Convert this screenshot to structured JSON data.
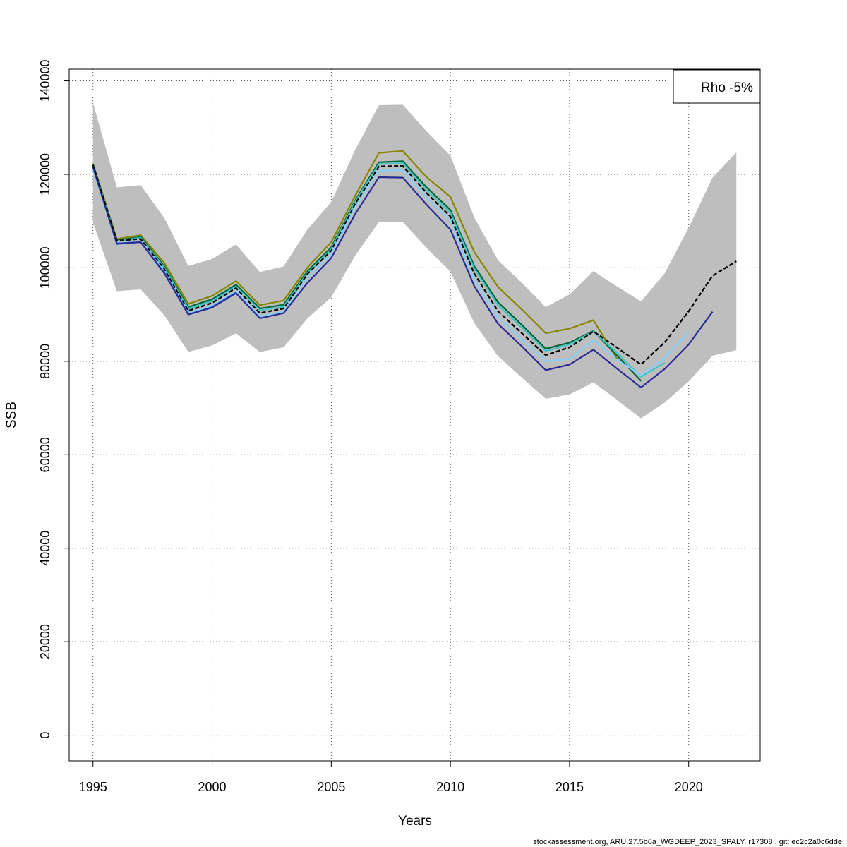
{
  "footer": "stockassessment.org, ARU.27.5b6a_WGDEEP_2023_SPALY, r17308 , git: ec2c2a0c6dde",
  "chart_data": {
    "type": "line",
    "title": "",
    "xlabel": "Years",
    "ylabel": "SSB",
    "xlim": [
      1994,
      2023
    ],
    "ylim": [
      -5500,
      142500
    ],
    "grid": true,
    "x_ticks": [
      1995,
      2000,
      2005,
      2010,
      2015,
      2020
    ],
    "y_ticks": [
      0,
      20000,
      40000,
      60000,
      80000,
      100000,
      120000,
      140000
    ],
    "legend": {
      "position": "top-right",
      "entries": [
        "Rho -5%"
      ]
    },
    "confidence_band": {
      "color": "#bebebe",
      "x": [
        1995,
        1996,
        1997,
        1998,
        1999,
        2000,
        2001,
        2002,
        2003,
        2004,
        2005,
        2006,
        2007,
        2008,
        2009,
        2010,
        2011,
        2012,
        2013,
        2014,
        2015,
        2016,
        2017,
        2018,
        2019,
        2020,
        2021,
        2022
      ],
      "upper": [
        135300,
        117200,
        117700,
        110600,
        100400,
        101900,
        105000,
        99100,
        100300,
        108200,
        114100,
        125200,
        134800,
        134900,
        129200,
        124000,
        110800,
        101600,
        96800,
        91600,
        94300,
        99300,
        96000,
        92800,
        98900,
        108600,
        119300,
        124700
      ],
      "lower": [
        109700,
        95000,
        95400,
        89800,
        82000,
        83400,
        86000,
        82000,
        83000,
        89200,
        93700,
        102600,
        109800,
        109800,
        104300,
        99200,
        88200,
        81100,
        76500,
        72000,
        72900,
        75500,
        71700,
        67800,
        71200,
        75700,
        81200,
        82400
      ]
    },
    "series": [
      {
        "color": "#000000",
        "dashed": true,
        "x": [
          1995,
          1996,
          1997,
          1998,
          1999,
          2000,
          2001,
          2002,
          2003,
          2004,
          2005,
          2006,
          2007,
          2008,
          2009,
          2010,
          2011,
          2012,
          2013,
          2014,
          2015,
          2016,
          2017,
          2018,
          2019,
          2020,
          2021,
          2022
        ],
        "values": [
          122000,
          105800,
          106200,
          99700,
          90800,
          92500,
          95700,
          90300,
          91300,
          98700,
          103700,
          113700,
          121700,
          121800,
          116000,
          111000,
          98800,
          90700,
          86000,
          81300,
          83000,
          86400,
          82900,
          79300,
          84100,
          90700,
          98300,
          101400
        ]
      },
      {
        "color": "#878700",
        "x": [
          1995,
          1996,
          1997,
          1998,
          1999,
          2000,
          2001,
          2002,
          2003,
          2004,
          2005,
          2006,
          2007,
          2008,
          2009,
          2010,
          2011,
          2012,
          2013,
          2014,
          2015,
          2016,
          2017
        ],
        "values": [
          122300,
          106200,
          107000,
          101000,
          92300,
          94000,
          97200,
          92000,
          93000,
          100100,
          105500,
          115400,
          124600,
          125000,
          119400,
          115200,
          103400,
          95900,
          91100,
          86000,
          87000,
          88800,
          80500
        ]
      },
      {
        "color": "#006837",
        "x": [
          1995,
          1996,
          1997,
          1998,
          1999,
          2000,
          2001,
          2002,
          2003,
          2004,
          2005,
          2006,
          2007,
          2008,
          2009,
          2010,
          2011,
          2012,
          2013,
          2014,
          2015,
          2016,
          2017,
          2018
        ],
        "values": [
          122100,
          105900,
          106600,
          100300,
          91600,
          93300,
          96400,
          91300,
          92100,
          99300,
          104400,
          114400,
          122600,
          122800,
          117200,
          112400,
          100400,
          92600,
          87800,
          82700,
          84000,
          86500,
          81200,
          75800
        ]
      },
      {
        "color": "#43c5c5",
        "x": [
          1995,
          1996,
          1997,
          1998,
          1999,
          2000,
          2001,
          2002,
          2003,
          2004,
          2005,
          2006,
          2007,
          2008,
          2009,
          2010,
          2011,
          2012,
          2013,
          2014,
          2015,
          2016,
          2017,
          2018,
          2019
        ],
        "values": [
          121900,
          105700,
          106400,
          100000,
          91200,
          92900,
          96000,
          90900,
          91700,
          98900,
          104000,
          114100,
          122200,
          122400,
          116600,
          111800,
          99800,
          92000,
          87200,
          82200,
          83600,
          86400,
          81800,
          76700,
          79700
        ]
      },
      {
        "color": "#87cefa",
        "x": [
          1995,
          1996,
          1997,
          1998,
          1999,
          2000,
          2001,
          2002,
          2003,
          2004,
          2005,
          2006,
          2007,
          2008,
          2009,
          2010,
          2011,
          2012,
          2013,
          2014,
          2015,
          2016,
          2017,
          2018,
          2019,
          2020
        ],
        "values": [
          121200,
          105300,
          105600,
          99400,
          90400,
          91900,
          95000,
          89600,
          90600,
          98000,
          103000,
          113000,
          120800,
          120900,
          115000,
          110100,
          97500,
          89500,
          84700,
          80000,
          80500,
          84500,
          80300,
          77000,
          80800,
          86300
        ]
      },
      {
        "color": "#1f63e0",
        "x": [
          1995,
          1996,
          1997,
          1998,
          1999,
          2000,
          2001
        ],
        "values": [
          121500,
          105100,
          105500,
          98900,
          90000,
          91600,
          94700
        ]
      },
      {
        "color": "#2c2c96",
        "x": [
          1995,
          1996,
          1997,
          1998,
          1999,
          2000,
          2001,
          2002,
          2003,
          2004,
          2005,
          2006,
          2007,
          2008,
          2009,
          2010,
          2011,
          2012,
          2013,
          2014,
          2015,
          2016,
          2017,
          2018,
          2019,
          2020,
          2021
        ],
        "values": [
          121700,
          105200,
          105500,
          98800,
          90000,
          91500,
          94600,
          89200,
          90300,
          96800,
          102100,
          111500,
          119400,
          119300,
          113500,
          108200,
          96100,
          88000,
          83200,
          78100,
          79300,
          82500,
          78400,
          74400,
          78400,
          83600,
          90600
        ]
      }
    ]
  }
}
